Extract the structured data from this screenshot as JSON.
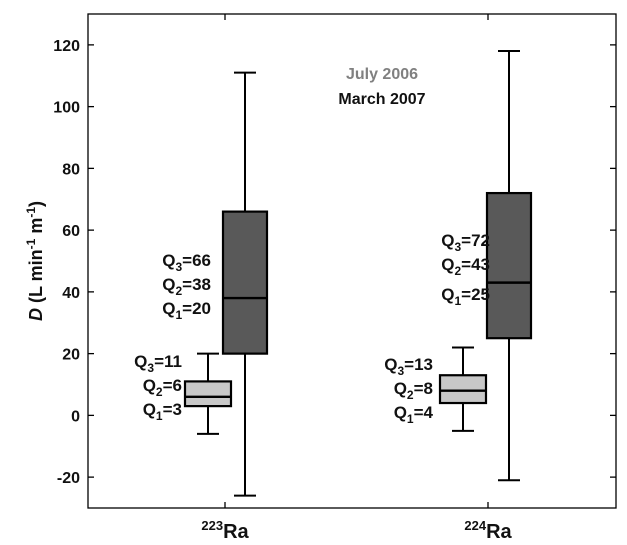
{
  "chart_data": {
    "type": "box",
    "ylabel": {
      "prefix": "D",
      "unit": "(L min",
      "sup1": "-1",
      "mid": " m",
      "sup2": "-1",
      "close": ")"
    },
    "ylim": [
      -30,
      130
    ],
    "yticks": [
      -20,
      0,
      20,
      40,
      60,
      80,
      100,
      120
    ],
    "ytick_labels": [
      "-20",
      "0",
      "20",
      "40",
      "60",
      "80",
      "100",
      "120"
    ],
    "grid": false,
    "categories": [
      {
        "mass": "223",
        "element": "Ra"
      },
      {
        "mass": "224",
        "element": "Ra"
      }
    ],
    "legend": {
      "placement": "top-center",
      "entries": [
        {
          "label": "July 2006",
          "color": "#808080"
        },
        {
          "label": "March 2007",
          "color": "#111111"
        }
      ]
    },
    "series": [
      {
        "name": "July 2006",
        "color": "#c8c8c8",
        "boxes": [
          {
            "category": "223Ra",
            "min": -6,
            "q1": 3,
            "median": 6,
            "q3": 11,
            "max": 20,
            "labels": {
              "q3": "11",
              "q2": "6",
              "q1": "3"
            }
          },
          {
            "category": "224Ra",
            "min": -5,
            "q1": 4,
            "median": 8,
            "q3": 13,
            "max": 22,
            "labels": {
              "q3": "13",
              "q2": "8",
              "q1": "4"
            }
          }
        ]
      },
      {
        "name": "March 2007",
        "color": "#595959",
        "boxes": [
          {
            "category": "223Ra",
            "min": -26,
            "q1": 20,
            "median": 38,
            "q3": 66,
            "max": 111,
            "labels": {
              "q3": "66",
              "q2": "38",
              "q1": "20"
            }
          },
          {
            "category": "224Ra",
            "min": -21,
            "q1": 25,
            "median": 43,
            "q3": 72,
            "max": 118,
            "labels": {
              "q3": "72",
              "q2": "43",
              "q1": "25"
            }
          }
        ]
      }
    ]
  }
}
